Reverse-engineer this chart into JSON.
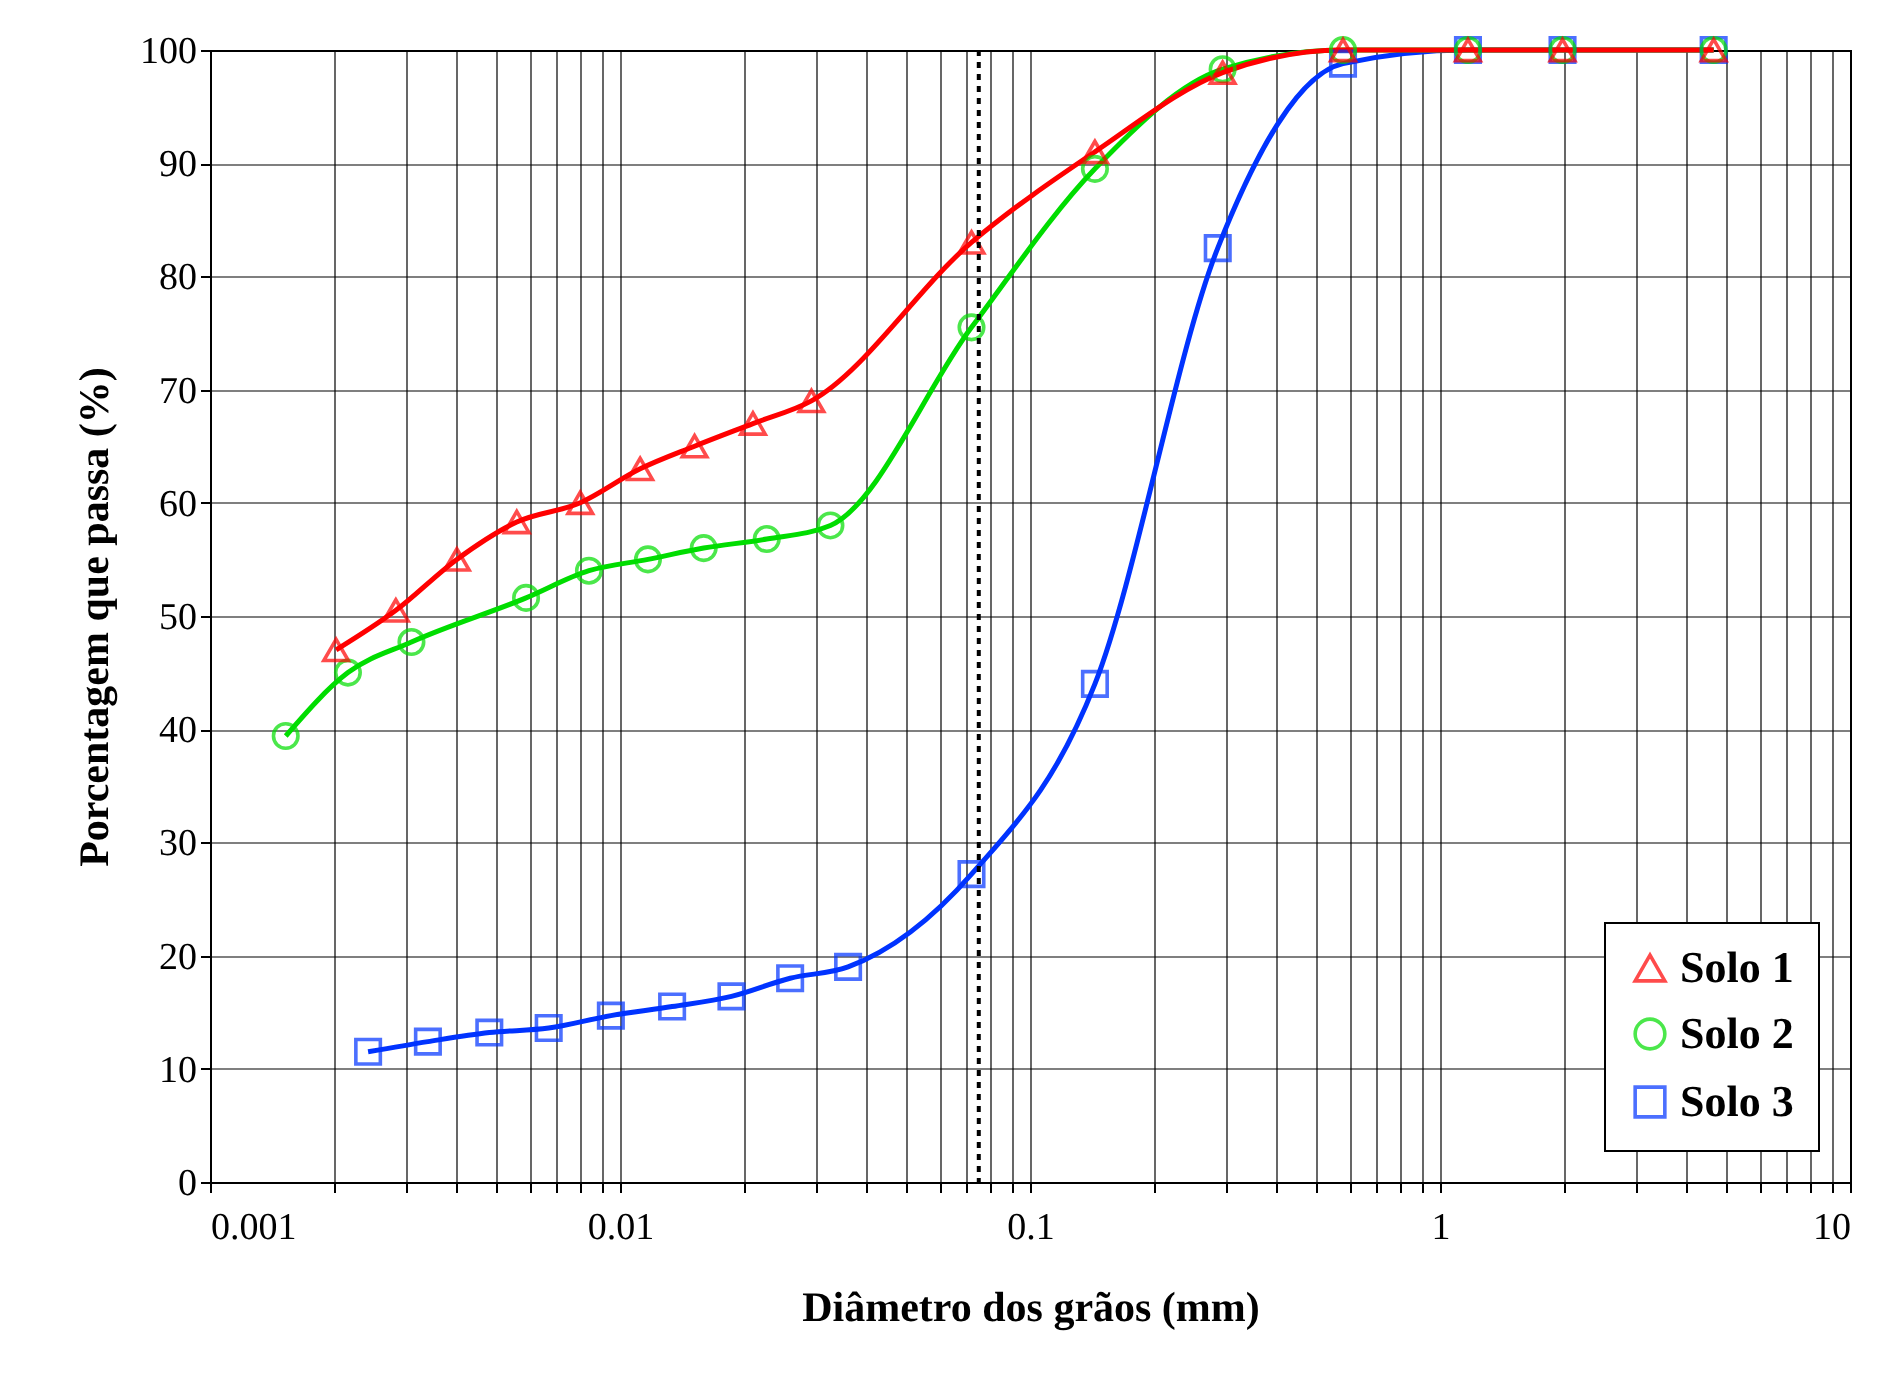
{
  "chart_data": {
    "type": "line",
    "xlabel": "Diâmetro dos grãos (mm)",
    "ylabel": "Porcentagem que passa (%)",
    "log": "x",
    "grid": true,
    "legend": "bottom right",
    "xlim": [
      0.001,
      10
    ],
    "ylim": [
      0,
      100
    ],
    "xticks": [
      {
        "value": 0.001,
        "label": "0.001"
      },
      {
        "value": 0.002,
        "label": null
      },
      {
        "value": 0.003,
        "label": null
      },
      {
        "value": 0.004,
        "label": null
      },
      {
        "value": 0.005,
        "label": null
      },
      {
        "value": 0.006,
        "label": null
      },
      {
        "value": 0.007,
        "label": null
      },
      {
        "value": 0.008,
        "label": null
      },
      {
        "value": 0.009,
        "label": null
      },
      {
        "value": 0.01,
        "label": "0.01"
      },
      {
        "value": 0.02,
        "label": null
      },
      {
        "value": 0.03,
        "label": null
      },
      {
        "value": 0.04,
        "label": null
      },
      {
        "value": 0.05,
        "label": null
      },
      {
        "value": 0.06,
        "label": null
      },
      {
        "value": 0.07,
        "label": null
      },
      {
        "value": 0.08,
        "label": null
      },
      {
        "value": 0.09,
        "label": null
      },
      {
        "value": 0.1,
        "label": "0.1"
      },
      {
        "value": 0.2,
        "label": null
      },
      {
        "value": 0.3,
        "label": null
      },
      {
        "value": 0.4,
        "label": null
      },
      {
        "value": 0.5,
        "label": null
      },
      {
        "value": 0.6,
        "label": null
      },
      {
        "value": 0.7,
        "label": null
      },
      {
        "value": 0.8,
        "label": null
      },
      {
        "value": 0.9,
        "label": null
      },
      {
        "value": 1,
        "label": "1"
      },
      {
        "value": 2,
        "label": null
      },
      {
        "value": 3,
        "label": null
      },
      {
        "value": 4,
        "label": null
      },
      {
        "value": 5,
        "label": null
      },
      {
        "value": 6,
        "label": null
      },
      {
        "value": 7,
        "label": null
      },
      {
        "value": 8,
        "label": null
      },
      {
        "value": 9,
        "label": null
      },
      {
        "value": 10,
        "label": "10"
      }
    ],
    "yticks": [
      0,
      10,
      20,
      30,
      40,
      50,
      60,
      70,
      80,
      90,
      100
    ],
    "ref_lines": [
      {
        "axis": "x",
        "value": 0.075,
        "color": "#000000",
        "line_style": "dotted"
      }
    ],
    "series": [
      {
        "name": "Solo 1",
        "color": "#ff0000",
        "marker": "triangle",
        "x": [
          0.00203,
          0.00284,
          0.004,
          0.0056,
          0.008,
          0.0112,
          0.0152,
          0.0211,
          0.0293,
          0.072,
          0.144,
          0.295,
          0.58,
          1.17,
          1.99,
          4.65
        ],
        "values": [
          47,
          50.5,
          55,
          58.3,
          60,
          63,
          65,
          67,
          69,
          83,
          91,
          98,
          100,
          100,
          100,
          100
        ]
      },
      {
        "name": "Solo 2",
        "color": "#00dd00",
        "marker": "circle",
        "x": [
          0.00153,
          0.00217,
          0.0031,
          0.0059,
          0.0084,
          0.0117,
          0.016,
          0.0228,
          0.0326,
          0.072,
          0.144,
          0.295,
          0.58,
          1.17,
          1.99,
          4.65
        ],
        "values": [
          39.4,
          45,
          47.7,
          51.6,
          54,
          55,
          56,
          56.8,
          58,
          75.5,
          89.5,
          98.3,
          100,
          100,
          100,
          100
        ]
      },
      {
        "name": "Solo 3",
        "color": "#0033ff",
        "marker": "square",
        "x": [
          0.00243,
          0.0034,
          0.0048,
          0.0067,
          0.0095,
          0.0134,
          0.0187,
          0.026,
          0.036,
          0.072,
          0.144,
          0.287,
          0.58,
          1.17,
          1.99,
          4.65
        ],
        "values": [
          11.5,
          12.4,
          13.2,
          13.6,
          14.7,
          15.5,
          16.4,
          18,
          19,
          27.2,
          44,
          82.5,
          98.8,
          100,
          100,
          100
        ]
      }
    ]
  }
}
